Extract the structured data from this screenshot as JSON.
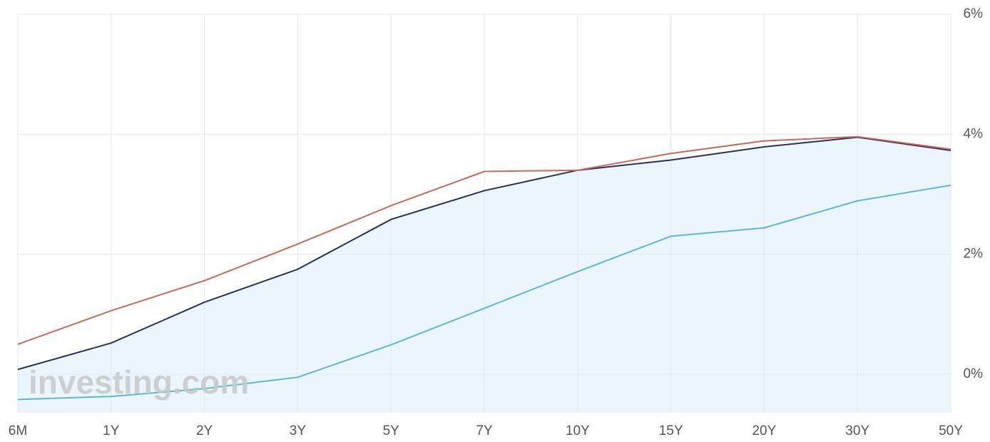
{
  "chart_data": {
    "type": "line",
    "categories": [
      "6M",
      "1Y",
      "2Y",
      "3Y",
      "5Y",
      "7Y",
      "10Y",
      "15Y",
      "20Y",
      "30Y",
      "50Y"
    ],
    "series": [
      {
        "color": "#2b2f5a",
        "fill": true,
        "fill_color": "#eaf5fd",
        "values": [
          0.08,
          0.52,
          1.2,
          1.75,
          2.58,
          3.06,
          3.4,
          3.57,
          3.79,
          3.95,
          3.73
        ]
      },
      {
        "color": "#c46a5e",
        "values": [
          0.5,
          1.06,
          1.56,
          2.17,
          2.81,
          3.38,
          3.4,
          3.68,
          3.89,
          3.96,
          3.75
        ]
      },
      {
        "color": "#5fb6cf",
        "values": [
          -0.42,
          -0.37,
          -0.24,
          -0.05,
          0.49,
          1.1,
          1.71,
          2.3,
          2.44,
          2.89,
          3.15
        ]
      }
    ],
    "ylim": [
      -0.63,
      6
    ],
    "yticks": [
      {
        "value": 0,
        "label": "0%"
      },
      {
        "value": 2,
        "label": "2%"
      },
      {
        "value": 4,
        "label": "4%"
      },
      {
        "value": 6,
        "label": "6%"
      }
    ],
    "grid": true,
    "watermark": "investing.com"
  }
}
